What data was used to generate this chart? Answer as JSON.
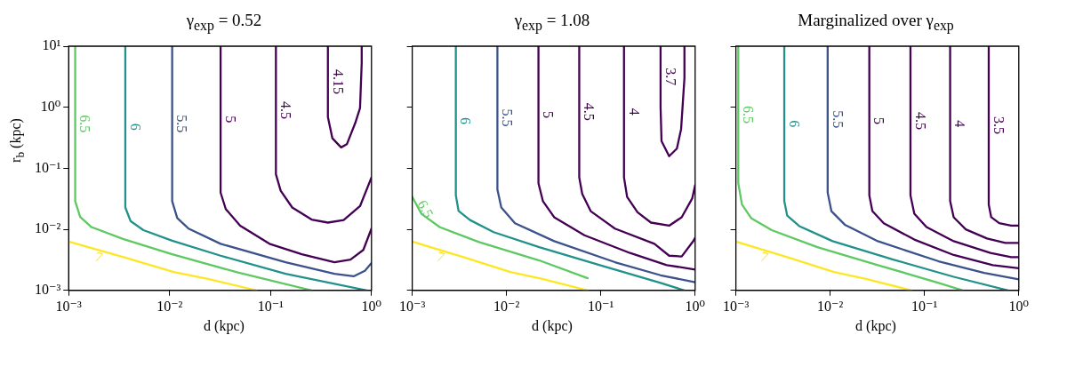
{
  "chart_data": [
    {
      "type": "line",
      "title": "γ$_{exp}$ = 0.52",
      "xlabel": "d (kpc)",
      "ylabel": "r$_{b}$ (kpc)",
      "log": "xy",
      "marker": "none",
      "line_style": "solid",
      "xlim": [
        0.001,
        1
      ],
      "ylim": [
        0.001,
        10
      ],
      "xticks": [
        {
          "value": 0.001,
          "label": "10⁻³"
        },
        {
          "value": 0.01,
          "label": "10⁻²"
        },
        {
          "value": 0.1,
          "label": "10⁻¹"
        },
        {
          "value": 1,
          "label": "10⁰"
        }
      ],
      "yticks": [
        {
          "value": 0.001,
          "label": "10⁻³"
        },
        {
          "value": 0.01,
          "label": "10⁻²"
        },
        {
          "value": 0.1,
          "label": "10⁻¹"
        },
        {
          "value": 1,
          "label": "10⁰"
        },
        {
          "value": 10,
          "label": "10¹"
        }
      ],
      "series": [
        {
          "name": "7",
          "color": "#fde725",
          "x": [
            0.001,
            0.0035,
            0.011,
            0.024,
            0.0726
          ],
          "values": [
            0.0063,
            0.0035,
            0.002,
            0.00154,
            0.001
          ]
        },
        {
          "name": "6.5",
          "color": "#5ec962",
          "x": [
            0.00116,
            0.00116,
            0.0013,
            0.00168,
            0.0035,
            0.0106,
            0.0466,
            0.255
          ],
          "values": [
            10,
            0.029,
            0.016,
            0.0109,
            0.0069,
            0.0039,
            0.00198,
            0.001
          ]
        },
        {
          "name": "6",
          "color": "#21918c",
          "x": [
            0.00364,
            0.00364,
            0.0041,
            0.0055,
            0.0106,
            0.032,
            0.141,
            0.9
          ],
          "values": [
            10,
            0.0228,
            0.0137,
            0.0097,
            0.0065,
            0.0037,
            0.00187,
            0.001
          ]
        },
        {
          "name": "5.5",
          "color": "#3b528b",
          "x": [
            0.0106,
            0.0106,
            0.0119,
            0.0154,
            0.032,
            0.141,
            0.43,
            0.665,
            0.86,
            1
          ],
          "values": [
            10,
            0.029,
            0.0153,
            0.0103,
            0.0058,
            0.0029,
            0.00187,
            0.0017,
            0.0021,
            0.0028
          ]
        },
        {
          "name": "5",
          "color": "#440154",
          "x": [
            0.032,
            0.032,
            0.036,
            0.05,
            0.0975,
            0.204,
            0.43,
            0.62,
            0.83,
            1
          ],
          "values": [
            10,
            0.04,
            0.0215,
            0.0115,
            0.0058,
            0.0039,
            0.0029,
            0.0032,
            0.0046,
            0.0103
          ]
        },
        {
          "name": "4.5",
          "color": "#440154",
          "x": [
            0.113,
            0.113,
            0.126,
            0.164,
            0.255,
            0.37,
            0.53,
            0.77,
            1
          ],
          "values": [
            10,
            0.08,
            0.043,
            0.0228,
            0.0145,
            0.0129,
            0.0142,
            0.024,
            0.071
          ]
        },
        {
          "name": "4.15",
          "color": "#440154",
          "x": [
            0.37,
            0.37,
            0.41,
            0.5,
            0.57,
            0.69,
            0.77,
            0.8,
            0.8
          ],
          "values": [
            10,
            0.69,
            0.31,
            0.22,
            0.248,
            0.55,
            0.97,
            5.3,
            10
          ]
        }
      ]
    },
    {
      "type": "line",
      "title": "γ$_{exp}$ = 1.08",
      "xlabel": "d (kpc)",
      "log": "xy",
      "marker": "none",
      "line_style": "solid",
      "tick_labels": "x",
      "xlim": [
        0.001,
        1
      ],
      "ylim": [
        0.001,
        10
      ],
      "xticks": [
        {
          "value": 0.001,
          "label": "10⁻³"
        },
        {
          "value": 0.01,
          "label": "10⁻²"
        },
        {
          "value": 0.1,
          "label": "10⁻¹"
        },
        {
          "value": 1,
          "label": "10⁰"
        }
      ],
      "yticks": [
        0.001,
        0.01,
        0.1,
        1,
        10
      ],
      "series": [
        {
          "name": "7",
          "color": "#fde725",
          "x": [
            0.001,
            0.0035,
            0.011,
            0.024,
            0.0726
          ],
          "values": [
            0.0063,
            0.0035,
            0.002,
            0.00154,
            0.001
          ]
        },
        {
          "name": "6.5",
          "color": "#5ec962",
          "x": [
            0.001,
            0.00125,
            0.00195,
            0.0051,
            0.0222,
            0.0726
          ],
          "values": [
            0.034,
            0.018,
            0.0109,
            0.0062,
            0.0031,
            0.00158
          ]
        },
        {
          "name": "6",
          "color": "#21918c",
          "x": [
            0.0029,
            0.0029,
            0.0031,
            0.0041,
            0.0073,
            0.0222,
            0.0975,
            0.43,
            0.77
          ],
          "values": [
            10,
            0.036,
            0.02,
            0.0142,
            0.009,
            0.0051,
            0.0026,
            0.00133,
            0.001
          ]
        },
        {
          "name": "5.5",
          "color": "#3b528b",
          "x": [
            0.008,
            0.008,
            0.0088,
            0.0123,
            0.032,
            0.141,
            0.43,
            1
          ],
          "values": [
            10,
            0.045,
            0.0228,
            0.0126,
            0.0064,
            0.0029,
            0.00177,
            0.00136
          ]
        },
        {
          "name": "5",
          "color": "#440154",
          "x": [
            0.0218,
            0.0218,
            0.0243,
            0.032,
            0.067,
            0.204,
            0.5,
            1
          ],
          "values": [
            10,
            0.057,
            0.029,
            0.0158,
            0.008,
            0.0041,
            0.0026,
            0.0022
          ]
        },
        {
          "name": "4.5",
          "color": "#440154",
          "x": [
            0.059,
            0.059,
            0.0635,
            0.078,
            0.141,
            0.37,
            0.53,
            0.72,
            0.96,
            1
          ],
          "values": [
            10,
            0.071,
            0.038,
            0.0199,
            0.0103,
            0.0058,
            0.0037,
            0.0036,
            0.0065,
            0.0073
          ]
        },
        {
          "name": "4",
          "color": "#440154",
          "x": [
            0.176,
            0.176,
            0.19,
            0.245,
            0.34,
            0.53,
            0.72,
            0.93,
            1
          ],
          "values": [
            10,
            0.071,
            0.034,
            0.019,
            0.0129,
            0.0115,
            0.0158,
            0.032,
            0.053
          ]
        },
        {
          "name": "3.7",
          "color": "#440154",
          "x": [
            0.43,
            0.43,
            0.44,
            0.53,
            0.64,
            0.71,
            0.77,
            0.77
          ],
          "values": [
            10,
            1,
            0.28,
            0.158,
            0.21,
            0.44,
            3,
            10
          ]
        }
      ]
    },
    {
      "type": "line",
      "title": "Marginalized over γ$_{exp}$",
      "xlabel": "d (kpc)",
      "log": "xy",
      "marker": "none",
      "line_style": "solid",
      "tick_labels": "x",
      "xlim": [
        0.001,
        1
      ],
      "ylim": [
        0.001,
        10
      ],
      "xticks": [
        {
          "value": 0.001,
          "label": "10⁻³"
        },
        {
          "value": 0.01,
          "label": "10⁻²"
        },
        {
          "value": 0.1,
          "label": "10⁻¹"
        },
        {
          "value": 1,
          "label": "10⁰"
        }
      ],
      "yticks": [
        0.001,
        0.01,
        0.1,
        1,
        10
      ],
      "series": [
        {
          "name": "7",
          "color": "#fde725",
          "x": [
            0.001,
            0.0035,
            0.011,
            0.024,
            0.0726
          ],
          "values": [
            0.0063,
            0.0035,
            0.002,
            0.00154,
            0.001
          ]
        },
        {
          "name": "6.5",
          "color": "#5ec962",
          "x": [
            0.00106,
            0.00106,
            0.00116,
            0.00145,
            0.0024,
            0.0073,
            0.032,
            0.141,
            0.255
          ],
          "values": [
            10,
            0.057,
            0.0255,
            0.0153,
            0.0097,
            0.0051,
            0.0026,
            0.00133,
            0.001
          ]
        },
        {
          "name": "6",
          "color": "#21918c",
          "x": [
            0.00326,
            0.00326,
            0.0035,
            0.0047,
            0.0106,
            0.0466,
            0.204,
            0.77
          ],
          "values": [
            10,
            0.029,
            0.0168,
            0.0113,
            0.0064,
            0.0032,
            0.00167,
            0.001
          ]
        },
        {
          "name": "5.5",
          "color": "#3b528b",
          "x": [
            0.0094,
            0.0094,
            0.0103,
            0.0143,
            0.032,
            0.141,
            0.43,
            1
          ],
          "values": [
            10,
            0.04,
            0.0199,
            0.0119,
            0.0064,
            0.003,
            0.00193,
            0.00152
          ]
        },
        {
          "name": "5",
          "color": "#440154",
          "x": [
            0.026,
            0.026,
            0.028,
            0.037,
            0.078,
            0.204,
            0.53,
            1
          ],
          "values": [
            10,
            0.036,
            0.02,
            0.0126,
            0.0068,
            0.0038,
            0.0026,
            0.0023
          ]
        },
        {
          "name": "4.5",
          "color": "#440154",
          "x": [
            0.071,
            0.071,
            0.078,
            0.105,
            0.204,
            0.5,
            0.83,
            1
          ],
          "values": [
            10,
            0.036,
            0.018,
            0.0109,
            0.0064,
            0.0041,
            0.0035,
            0.0035
          ]
        },
        {
          "name": "4",
          "color": "#440154",
          "x": [
            0.187,
            0.187,
            0.204,
            0.274,
            0.46,
            0.72,
            1
          ],
          "values": [
            10,
            0.029,
            0.0158,
            0.01,
            0.0071,
            0.006,
            0.006
          ]
        },
        {
          "name": "3.5",
          "color": "#440154",
          "x": [
            0.48,
            0.48,
            0.51,
            0.62,
            0.83,
            1
          ],
          "values": [
            10,
            0.0255,
            0.0158,
            0.0126,
            0.0115,
            0.0115
          ]
        }
      ]
    }
  ]
}
